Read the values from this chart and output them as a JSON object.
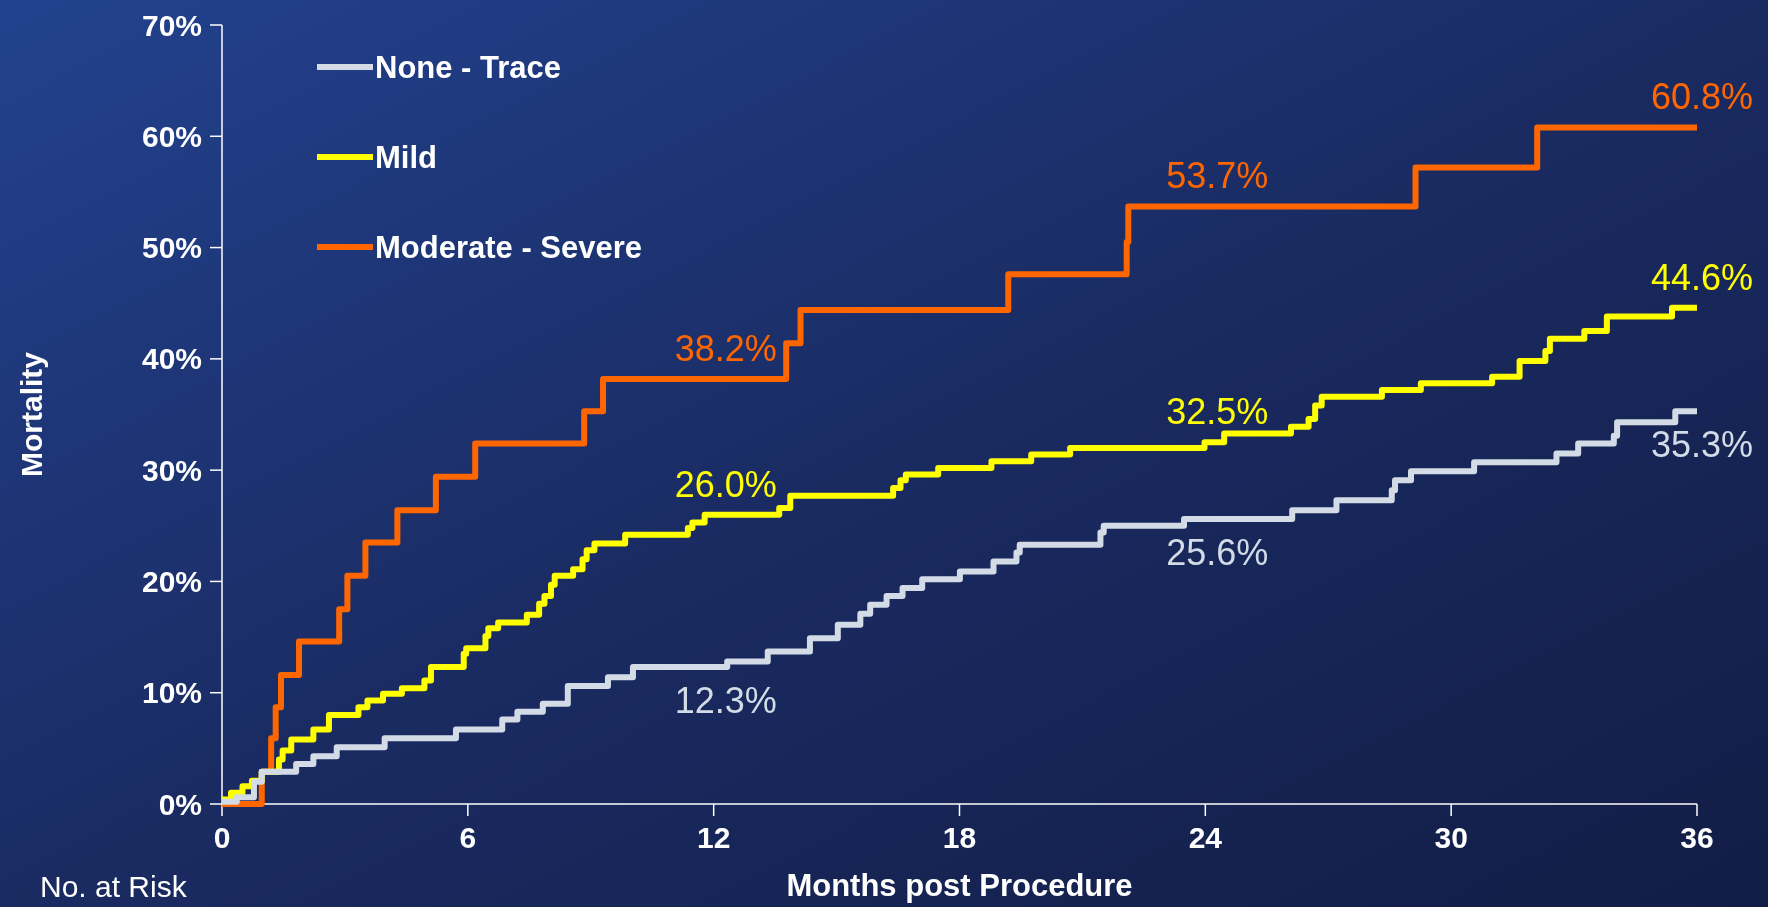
{
  "chart_data": {
    "type": "step",
    "xlabel": "Months post Procedure",
    "ylabel": "Mortality",
    "legend": "top left",
    "xlim": [
      0,
      36
    ],
    "ylim": [
      0,
      70
    ],
    "xticks": [
      0,
      6,
      12,
      18,
      24,
      30,
      36
    ],
    "yticks": [
      {
        "value": 0,
        "label": "0%"
      },
      {
        "value": 10,
        "label": "10%"
      },
      {
        "value": 20,
        "label": "20%"
      },
      {
        "value": 30,
        "label": "30%"
      },
      {
        "value": 40,
        "label": "40%"
      },
      {
        "value": 50,
        "label": "50%"
      },
      {
        "value": 60,
        "label": "60%"
      },
      {
        "value": 70,
        "label": "70%"
      }
    ],
    "series": [
      {
        "name": "None - Trace",
        "color": "#d3dce6",
        "x": [
          0,
          0.36,
          0.78,
          0.97,
          1.81,
          2.23,
          2.8,
          3.97,
          5.71,
          6.84,
          7.21,
          7.83,
          8.44,
          9.42,
          10.03,
          12.33,
          13.32,
          14.35,
          15.03,
          15.58,
          15.82,
          16.22,
          16.61,
          17.09,
          18.01,
          18.83,
          19.39,
          19.47,
          21.44,
          21.52,
          23.48,
          26.12,
          27.2,
          28.55,
          28.63,
          29.02,
          30.56,
          32.57,
          33.1,
          33.97,
          34.05,
          35.47,
          36
        ],
        "values": [
          0.2,
          0.6,
          2.0,
          2.9,
          3.6,
          4.3,
          5.1,
          5.9,
          6.7,
          7.6,
          8.3,
          9.0,
          10.6,
          11.4,
          12.3,
          12.8,
          13.7,
          14.9,
          16.1,
          17.1,
          17.9,
          18.7,
          19.4,
          20.2,
          20.9,
          21.8,
          22.6,
          23.3,
          24.4,
          25.0,
          25.6,
          26.4,
          27.3,
          28.2,
          29.1,
          29.9,
          30.7,
          31.5,
          32.4,
          33.1,
          34.3,
          35.3,
          35.3
        ]
      },
      {
        "name": "Mild",
        "color": "#ffff00",
        "x": [
          0,
          0.22,
          0.5,
          0.73,
          0.97,
          1.39,
          1.48,
          1.69,
          2.23,
          2.61,
          3.33,
          3.55,
          3.93,
          4.39,
          4.94,
          5.1,
          5.9,
          5.96,
          6.43,
          6.5,
          6.74,
          7.44,
          7.74,
          7.87,
          8.03,
          8.12,
          8.57,
          8.8,
          8.9,
          9.09,
          9.84,
          11.37,
          11.48,
          11.78,
          13.6,
          13.87,
          16.38,
          16.56,
          16.69,
          17.48,
          18.78,
          19.75,
          20.7,
          23.98,
          24.46,
          26.09,
          26.52,
          26.68,
          26.84,
          28.31,
          29.26,
          31.0,
          31.67,
          32.3,
          32.41,
          33.25,
          33.8,
          35.39,
          36
        ],
        "values": [
          0.4,
          1.0,
          1.6,
          2.1,
          2.9,
          4.0,
          4.8,
          5.8,
          6.7,
          8.0,
          8.7,
          9.3,
          9.9,
          10.4,
          11.1,
          12.3,
          13.5,
          14.0,
          15.1,
          15.8,
          16.3,
          17.0,
          18.0,
          18.7,
          19.7,
          20.5,
          21.1,
          22.0,
          22.8,
          23.4,
          24.2,
          24.8,
          25.3,
          26.0,
          26.6,
          27.7,
          28.4,
          29.1,
          29.6,
          30.2,
          30.8,
          31.4,
          32.0,
          32.5,
          33.3,
          33.9,
          34.6,
          35.8,
          36.6,
          37.2,
          37.8,
          38.4,
          39.8,
          40.7,
          41.8,
          42.5,
          43.8,
          44.6,
          44.6
        ]
      },
      {
        "name": "Moderate - Severe",
        "color": "#ff6600",
        "x": [
          0,
          0.97,
          1.2,
          1.31,
          1.44,
          1.88,
          2.86,
          3.06,
          3.5,
          4.28,
          5.22,
          6.18,
          8.84,
          9.3,
          13.77,
          14.12,
          19.19,
          22.08,
          22.12,
          29.13,
          32.1,
          36
        ],
        "values": [
          0,
          2.9,
          5.9,
          8.7,
          11.6,
          14.6,
          17.5,
          20.5,
          23.5,
          26.4,
          29.4,
          32.4,
          35.3,
          38.2,
          41.4,
          44.4,
          47.6,
          50.5,
          53.7,
          57.2,
          60.8,
          60.8
        ]
      }
    ],
    "annotations": [
      {
        "text": "38.2%",
        "x": 12,
        "y": 38.2
      },
      {
        "text": "26.0%",
        "x": 12,
        "y": 26.0
      },
      {
        "text": "12.3%",
        "x": 12,
        "y": 12.3
      },
      {
        "text": "53.7%",
        "x": 24,
        "y": 53.7
      },
      {
        "text": "32.5%",
        "x": 24,
        "y": 32.5
      },
      {
        "text": "25.6%",
        "x": 24,
        "y": 25.6
      },
      {
        "text": "60.8%",
        "x": 36,
        "y": 60.8
      },
      {
        "text": "44.6%",
        "x": 36,
        "y": 44.6
      },
      {
        "text": "35.3%",
        "x": 36,
        "y": 35.3
      },
      "No. at Risk"
    ]
  }
}
